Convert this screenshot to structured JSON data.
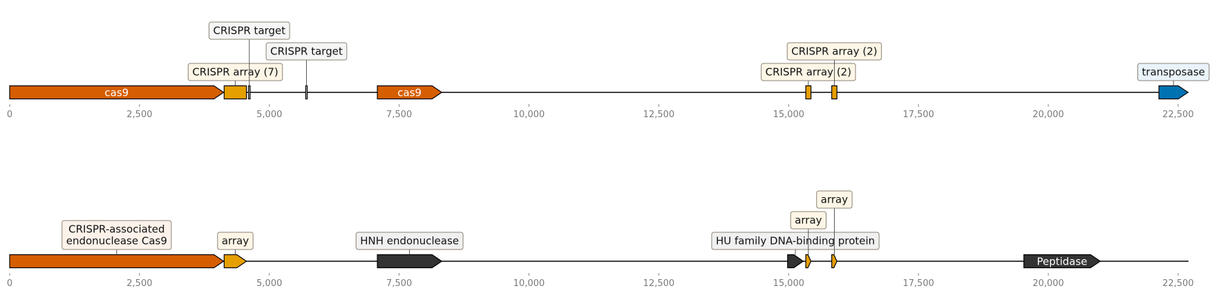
{
  "axis": {
    "ticks": [
      0,
      2500,
      5000,
      7500,
      10000,
      12500,
      15000,
      17500,
      20000,
      22500
    ],
    "tick_labels": [
      "0",
      "2,500",
      "5,000",
      "7,500",
      "10,000",
      "12,500",
      "15,000",
      "17,500",
      "20,000",
      "22,500"
    ],
    "xlim": [
      0,
      22700
    ]
  },
  "tracks": [
    {
      "name": "track-top",
      "backbone_end": 22700,
      "features": [
        {
          "id": "cas9-a",
          "start": 0,
          "end": 4120,
          "strand": 1,
          "color": "#D55E00",
          "label": "cas9",
          "label_style": "inline",
          "text_color": "#ffffff"
        },
        {
          "id": "crispr-array-7",
          "start": 4130,
          "end": 4560,
          "strand": 0,
          "color": "#E69F00",
          "label": "CRISPR array (7)",
          "label_style": "box",
          "level": 1,
          "box_fill": "#FDF6E6"
        },
        {
          "id": "crispr-target-1",
          "start": 4600,
          "end": 4630,
          "strand": 0,
          "color": "#bbbbbb",
          "label": "CRISPR target",
          "label_style": "box",
          "level": 3,
          "box_fill": "#F5F5F5"
        },
        {
          "id": "crispr-target-2",
          "start": 5700,
          "end": 5730,
          "strand": 0,
          "color": "#bbbbbb",
          "label": "CRISPR target",
          "label_style": "box",
          "level": 2,
          "box_fill": "#F5F5F5"
        },
        {
          "id": "cas9-b",
          "start": 7080,
          "end": 8320,
          "strand": 1,
          "color": "#D55E00",
          "label": "cas9",
          "label_style": "inline",
          "text_color": "#ffffff"
        },
        {
          "id": "crispr-array-2a",
          "start": 15330,
          "end": 15430,
          "strand": 0,
          "color": "#E69F00",
          "label": "CRISPR array (2)",
          "label_style": "box",
          "level": 1,
          "box_fill": "#FDF6E6"
        },
        {
          "id": "crispr-array-2b",
          "start": 15830,
          "end": 15930,
          "strand": 0,
          "color": "#E69F00",
          "label": "CRISPR array (2)",
          "label_style": "box",
          "level": 2,
          "box_fill": "#FDF6E6"
        },
        {
          "id": "transposase",
          "start": 22130,
          "end": 22690,
          "strand": 1,
          "color": "#0072B2",
          "label": "transposase",
          "label_style": "box",
          "level": 1,
          "box_fill": "#E9F3F9"
        }
      ]
    },
    {
      "name": "track-bottom",
      "backbone_end": 22700,
      "features": [
        {
          "id": "cas9-endo",
          "start": 0,
          "end": 4120,
          "strand": 1,
          "color": "#D55E00",
          "label": "CRISPR-associated\nendonuclease Cas9",
          "label_style": "box",
          "level": 1,
          "box_fill": "#FCF2EA"
        },
        {
          "id": "array-1",
          "start": 4130,
          "end": 4560,
          "strand": 1,
          "color": "#E69F00",
          "label": "array",
          "label_style": "box",
          "level": 1,
          "box_fill": "#FDF6E6"
        },
        {
          "id": "hnh",
          "start": 7080,
          "end": 8320,
          "strand": 1,
          "color": "#333333",
          "label": "HNH endonuclease",
          "label_style": "box",
          "level": 1,
          "box_fill": "#F0F0F0"
        },
        {
          "id": "hu-family",
          "start": 14980,
          "end": 15280,
          "strand": 1,
          "color": "#333333",
          "label": "HU family DNA-binding protein",
          "label_style": "box",
          "level": 1,
          "box_fill": "#F0F0F0"
        },
        {
          "id": "array-2",
          "start": 15330,
          "end": 15430,
          "strand": 1,
          "color": "#E69F00",
          "label": "array",
          "label_style": "box",
          "level": 2,
          "box_fill": "#FDF6E6"
        },
        {
          "id": "array-3",
          "start": 15830,
          "end": 15930,
          "strand": 1,
          "color": "#E69F00",
          "label": "array",
          "label_style": "box",
          "level": 3,
          "box_fill": "#FDF6E6"
        },
        {
          "id": "peptidase",
          "start": 19530,
          "end": 21000,
          "strand": 1,
          "color": "#333333",
          "label": "Peptidase",
          "label_style": "inline",
          "text_color": "#ffffff"
        }
      ]
    }
  ]
}
